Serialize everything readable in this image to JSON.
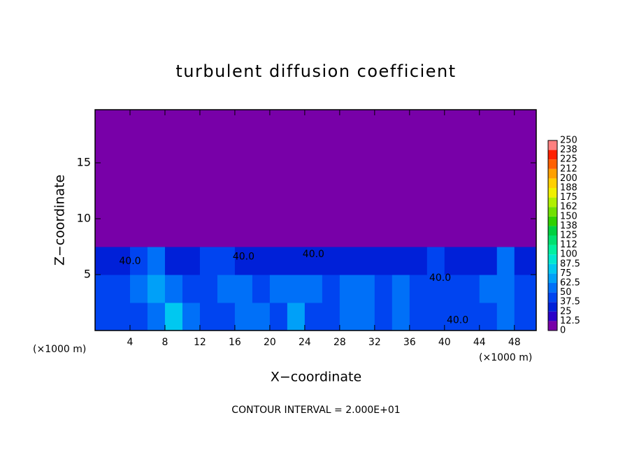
{
  "chart_data": {
    "type": "heatmap",
    "title": "turbulent diffusion coefficient",
    "x_label": "X−coordinate",
    "y_label": "Z−coordinate",
    "x_unit_left": "(×1000 m)",
    "x_unit_right": "(×1000 m)",
    "footer": "CONTOUR INTERVAL = 2.000E+01",
    "xlim": [
      0,
      50.5
    ],
    "ylim": [
      0,
      19.75
    ],
    "xticks": [
      4,
      8,
      12,
      16,
      20,
      24,
      28,
      32,
      36,
      40,
      44,
      48
    ],
    "yticks": [
      5,
      10,
      15
    ],
    "x_edges": [
      0,
      2,
      4,
      6,
      8,
      10,
      12,
      14,
      16,
      18,
      20,
      22,
      24,
      26,
      28,
      30,
      32,
      34,
      36,
      38,
      40,
      42,
      44,
      46,
      48,
      50.5
    ],
    "y_edges": [
      0,
      2.5,
      5,
      7.5,
      10,
      12.5,
      15,
      17.5,
      19.75
    ],
    "z": [
      [
        45,
        40,
        45,
        50,
        75,
        60,
        40,
        45,
        55,
        50,
        45,
        70,
        45,
        40,
        55,
        60,
        45,
        50,
        45,
        40,
        45,
        40,
        45,
        55,
        45
      ],
      [
        40,
        45,
        50,
        70,
        60,
        45,
        40,
        50,
        55,
        45,
        60,
        50,
        55,
        45,
        60,
        55,
        45,
        50,
        45,
        40,
        45,
        40,
        50,
        60,
        45
      ],
      [
        35,
        35,
        40,
        50,
        35,
        35,
        40,
        40,
        35,
        30,
        30,
        35,
        30,
        35,
        30,
        25,
        30,
        35,
        35,
        40,
        30,
        30,
        30,
        50,
        35
      ],
      [
        0,
        0,
        0,
        0,
        0,
        0,
        0,
        0,
        0,
        0,
        0,
        0,
        0,
        0,
        0,
        0,
        0,
        0,
        0,
        0,
        0,
        0,
        0,
        0,
        0
      ],
      [
        0,
        0,
        0,
        0,
        0,
        0,
        0,
        0,
        0,
        0,
        0,
        0,
        0,
        0,
        0,
        0,
        0,
        0,
        0,
        0,
        0,
        0,
        0,
        0,
        0
      ],
      [
        0,
        0,
        0,
        0,
        0,
        0,
        0,
        0,
        0,
        0,
        0,
        0,
        0,
        0,
        0,
        0,
        0,
        0,
        0,
        0,
        0,
        0,
        0,
        0,
        0
      ],
      [
        0,
        0,
        0,
        0,
        0,
        0,
        0,
        0,
        0,
        0,
        0,
        0,
        0,
        0,
        0,
        0,
        0,
        0,
        0,
        0,
        0,
        0,
        0,
        0,
        0
      ],
      [
        0,
        0,
        0,
        0,
        0,
        0,
        0,
        0,
        0,
        0,
        0,
        0,
        0,
        0,
        0,
        0,
        0,
        0,
        0,
        0,
        0,
        0,
        0,
        0,
        0
      ]
    ],
    "contour_labels": [
      {
        "text": "40.0",
        "x": 4,
        "y": 6.2
      },
      {
        "text": "40.0",
        "x": 17,
        "y": 6.6
      },
      {
        "text": "40.0",
        "x": 25,
        "y": 6.8
      },
      {
        "text": "40.0",
        "x": 39.5,
        "y": 4.7
      },
      {
        "text": "40.0",
        "x": 41.5,
        "y": 0.9
      }
    ],
    "colorbar": {
      "ticks": [
        0,
        12.5,
        25,
        37.5,
        50,
        62.5,
        75,
        87.5,
        100,
        {
          "value": 112.5,
          "label": "112"
        },
        125,
        {
          "value": 137.5,
          "label": "138"
        },
        150,
        {
          "value": 162.5,
          "label": "162"
        },
        175,
        {
          "value": 187.5,
          "label": "188"
        },
        200,
        {
          "value": 212.5,
          "label": "212"
        },
        225,
        {
          "value": 237.5,
          "label": "238"
        },
        250
      ],
      "colors": [
        "#7800a8",
        "#2a00c8",
        "#0020d8",
        "#0044f0",
        "#0070f8",
        "#00a0f8",
        "#00c8f0",
        "#00e8d0",
        "#00f0a0",
        "#00e070",
        "#00d040",
        "#30d000",
        "#70e000",
        "#b0f000",
        "#f0f000",
        "#ffd000",
        "#ffa000",
        "#ff6000",
        "#ff2000",
        "#ff8080"
      ]
    }
  }
}
